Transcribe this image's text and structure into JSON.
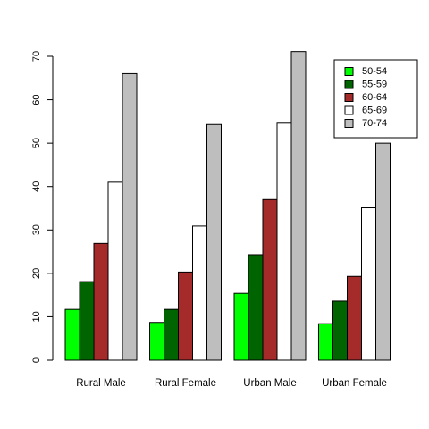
{
  "chart_data": {
    "type": "bar",
    "title": "",
    "xlabel": "",
    "ylabel": "",
    "ylim": [
      0,
      70
    ],
    "yticks": [
      0,
      10,
      20,
      30,
      40,
      50,
      60,
      70
    ],
    "grid": false,
    "legend_position": "top-right",
    "categories": [
      "Rural Male",
      "Rural Female",
      "Urban Male",
      "Urban Female"
    ],
    "series": [
      {
        "name": "50-54",
        "color": "#00ff00",
        "values": [
          11.7,
          8.7,
          15.4,
          8.4
        ]
      },
      {
        "name": "55-59",
        "color": "#006400",
        "values": [
          18.1,
          11.7,
          24.3,
          13.6
        ]
      },
      {
        "name": "60-64",
        "color": "#a52a2a",
        "values": [
          26.9,
          20.3,
          37.0,
          19.3
        ]
      },
      {
        "name": "65-69",
        "color": "#ffffff",
        "values": [
          41.0,
          30.9,
          54.6,
          35.1
        ]
      },
      {
        "name": "70-74",
        "color": "#bebebe",
        "values": [
          66.0,
          54.3,
          71.1,
          50.0
        ]
      }
    ]
  }
}
